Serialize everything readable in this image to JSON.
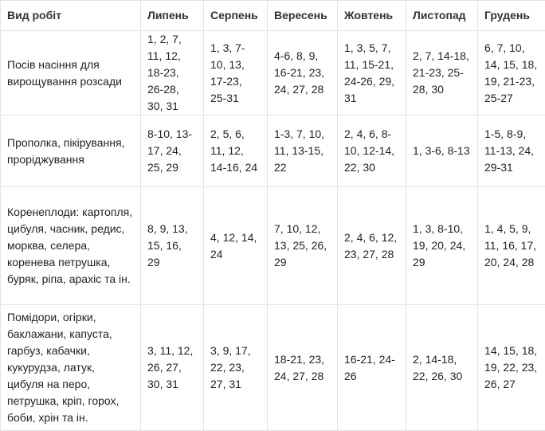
{
  "table": {
    "headers": [
      "Вид робіт",
      "Липень",
      "Серпень",
      "Вересень",
      "Жовтень",
      "Листопад",
      "Грудень"
    ],
    "rows": [
      {
        "label": "Посів насіння для вирощування розсади",
        "cells": [
          "1, 2, 7, 11, 12, 18-23, 26-28, 30, 31",
          "1, 3, 7-10, 13, 17-23, 25-31",
          "4-6, 8, 9, 16-21, 23, 24, 27, 28",
          "1, 3, 5, 7, 11, 15-21, 24-26, 29, 31",
          "2, 7, 14-18, 21-23, 25-28, 30",
          "6, 7, 10, 14, 15, 18, 19, 21-23, 25-27"
        ]
      },
      {
        "label": "Прополка, пікірування, проріджування",
        "cells": [
          "8-10, 13-17, 24, 25, 29",
          "2, 5, 6, 11, 12, 14-16, 24",
          "1-3, 7, 10, 11, 13-15, 22",
          "2, 4, 6, 8-10, 12-14, 22, 30",
          "1, 3-6, 8-13",
          "1-5, 8-9, 11-13, 24, 29-31"
        ]
      },
      {
        "label": "Коренеплоди: картопля, цибуля, часник, редис, морква, селера, коренева петрушка, буряк, ріпа, арахіс та ін.",
        "cells": [
          "8, 9, 13, 15, 16, 29",
          "4, 12, 14, 24",
          "7, 10, 12, 13, 25, 26, 29",
          "2, 4, 6, 12, 23, 27, 28",
          "1, 3, 8-10, 19, 20, 24, 29",
          "1, 4, 5, 9, 11, 16, 17, 20, 24, 28"
        ]
      },
      {
        "label": "Помідори, огірки, баклажани, капуста, гарбуз, кабачки, кукурудза, латук, цибуля на перо, петрушка, кріп, горох, боби, хрін та ін.",
        "cells": [
          "3, 11, 12, 26, 27, 30, 31",
          "3, 9, 17, 22, 23, 27, 31",
          "18-21, 23, 24, 27, 28",
          "16-21, 24-26",
          "2, 14-18, 22, 26, 30",
          "14, 15, 18, 19, 22, 23, 26, 27"
        ]
      }
    ]
  }
}
